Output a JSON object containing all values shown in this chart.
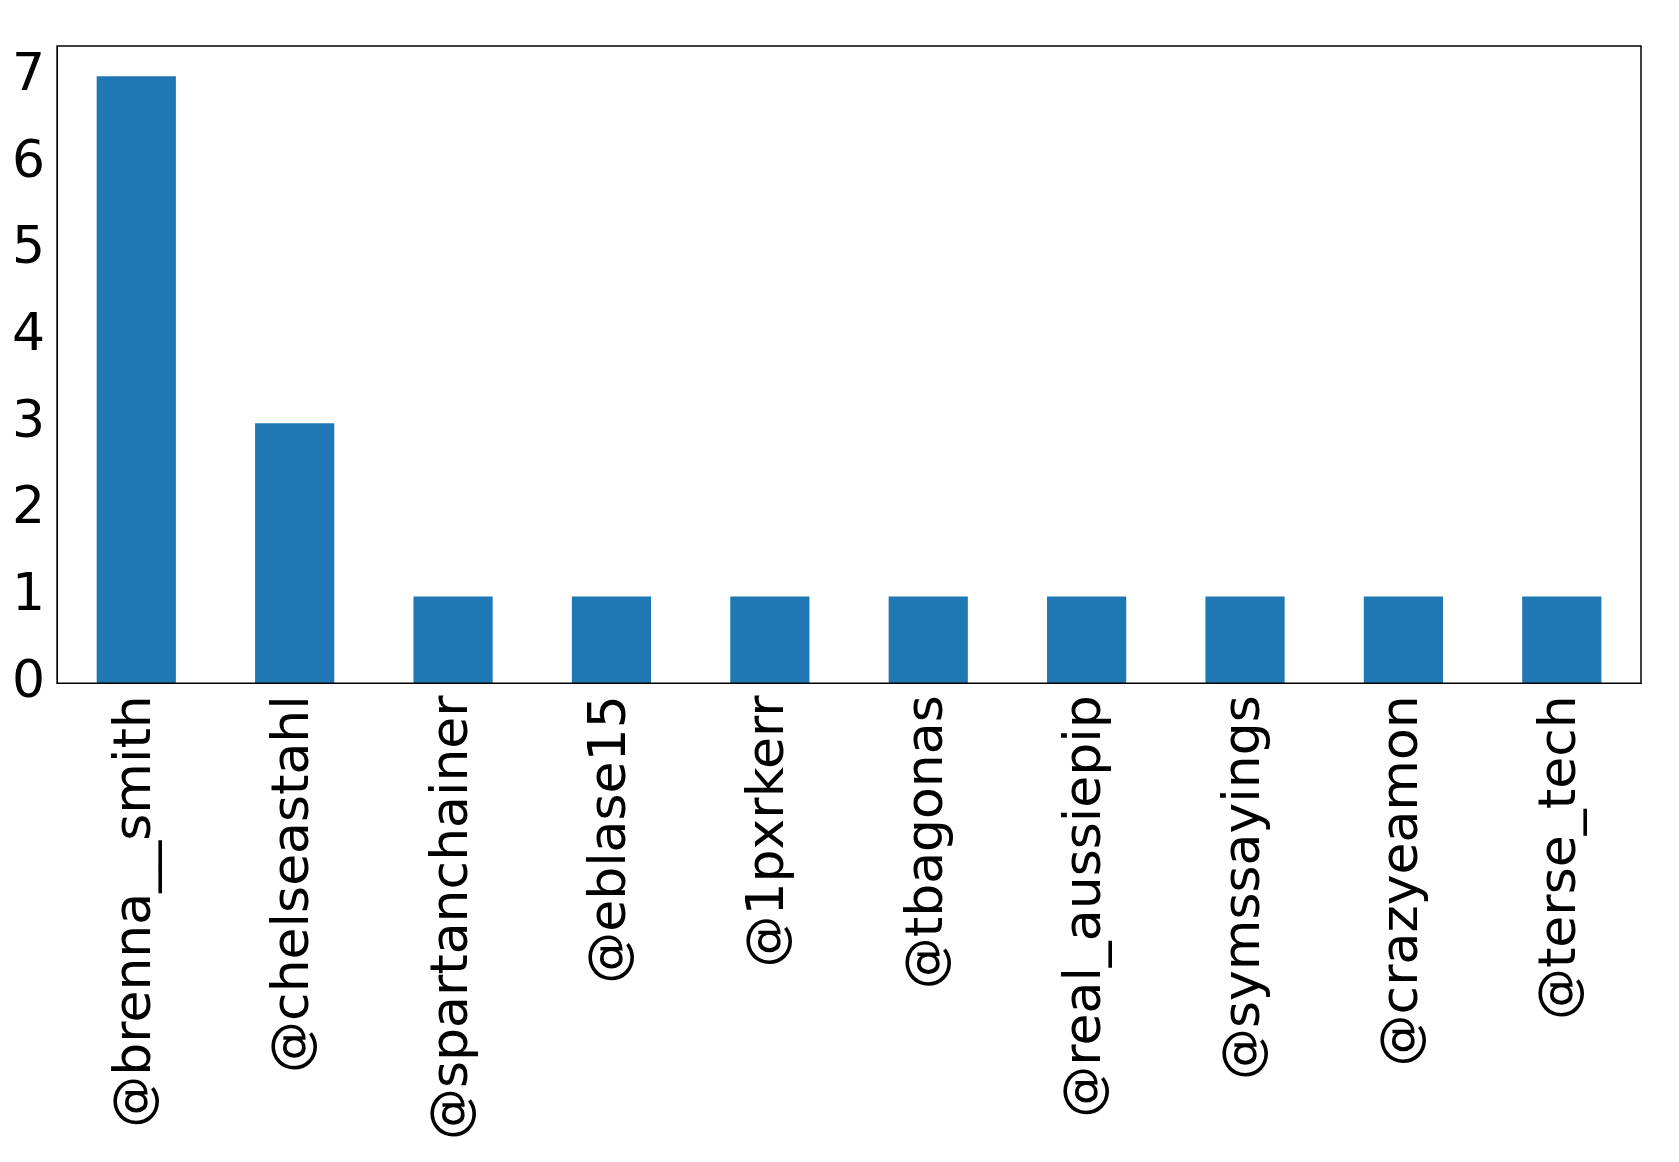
{
  "chart_data": {
    "type": "bar",
    "categories": [
      "@brenna__smith",
      "@chelseastahl",
      "@spartanchainer",
      "@eblase15",
      "@1pxrkerr",
      "@tbagonas",
      "@real_aussiepip",
      "@symssayings",
      "@crazyeamon",
      "@terse_tech"
    ],
    "values": [
      7,
      3,
      1,
      1,
      1,
      1,
      1,
      1,
      1,
      1
    ],
    "color": "#1f77b4",
    "ylim": [
      0,
      7.35
    ],
    "yticks": [
      0,
      1,
      2,
      3,
      4,
      5,
      6,
      7
    ],
    "grid": false,
    "legend": false
  }
}
